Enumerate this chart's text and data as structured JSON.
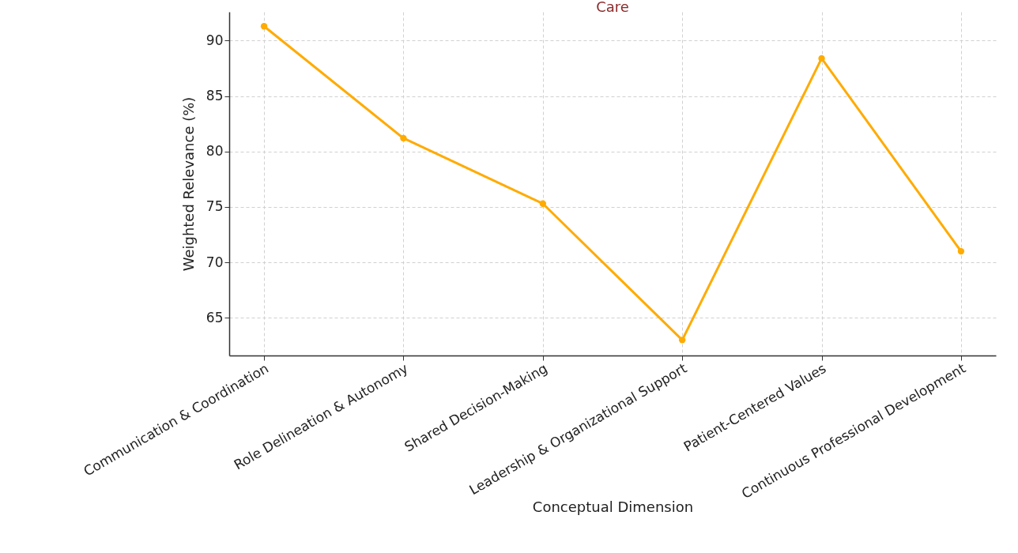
{
  "chart_data": {
    "type": "line",
    "title": "Care",
    "xlabel": "Conceptual Dimension",
    "ylabel": "Weighted Relevance (%)",
    "categories": [
      "Communication & Coordination",
      "Role Delineation & Autonomy",
      "Shared Decision-Making",
      "Leadership & Organizational Support",
      "Patient-Centered Values",
      "Continuous Professional Development"
    ],
    "series": [
      {
        "color": "#ffab00",
        "values": [
          91.3,
          81.2,
          75.3,
          63.0,
          88.4,
          71.0
        ]
      }
    ],
    "ylim": [
      61.6,
      92.6
    ],
    "yticks": [
      65,
      70,
      75,
      80,
      85,
      90
    ],
    "grid": true,
    "marker": "circle",
    "line_style": "solid"
  }
}
